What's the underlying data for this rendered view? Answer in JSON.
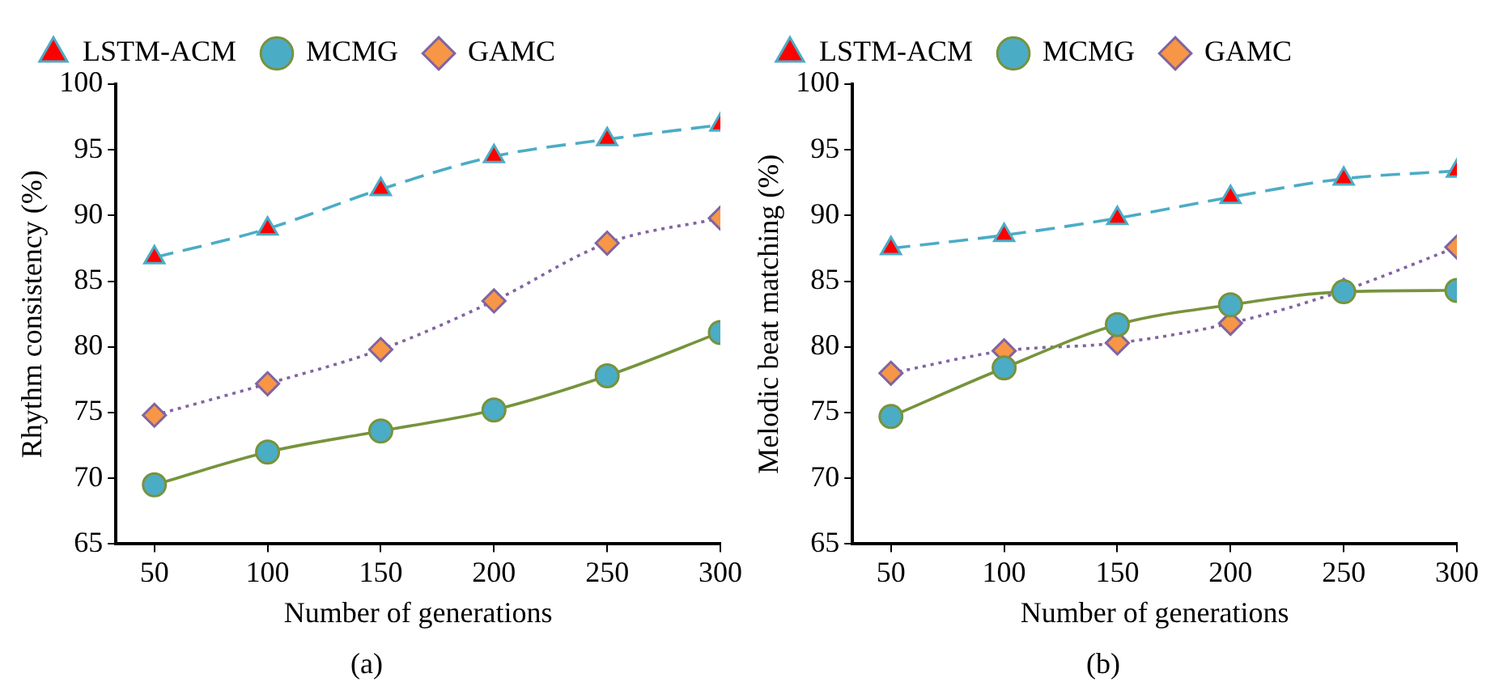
{
  "chart_data": [
    {
      "type": "line",
      "xlabel": "Number of generations",
      "ylabel": "Rhythm consistency (%)",
      "annotations": [
        "(a)"
      ],
      "x": [
        50,
        100,
        150,
        200,
        250,
        300
      ],
      "xlim": [
        33,
        300
      ],
      "xticks": [
        50,
        100,
        150,
        200,
        250,
        300
      ],
      "ylim": [
        65,
        100
      ],
      "yticks": [
        65,
        70,
        75,
        80,
        85,
        90,
        95,
        100
      ],
      "grid": false,
      "legend": "top",
      "series": [
        {
          "name": "LSTM-ACM",
          "color": "#4bacc6",
          "marker": "triangle",
          "line_style": "dashed",
          "values": [
            86.8,
            89.0,
            92.0,
            94.5,
            95.8,
            96.9
          ]
        },
        {
          "name": "MCMG",
          "color": "#77933c",
          "marker": "circle",
          "line_style": "solid",
          "values": [
            69.5,
            72.0,
            73.6,
            75.2,
            77.8,
            81.1
          ]
        },
        {
          "name": "GAMC",
          "color": "#8064a2",
          "marker": "diamond",
          "line_style": "dotted",
          "values": [
            74.8,
            77.2,
            79.8,
            83.5,
            87.9,
            89.8
          ]
        }
      ]
    },
    {
      "type": "line",
      "xlabel": "Number of generations",
      "ylabel": "Melodic beat matching (%)",
      "annotations": [
        "(b)"
      ],
      "x": [
        50,
        100,
        150,
        200,
        250,
        300
      ],
      "xlim": [
        33,
        300
      ],
      "xticks": [
        50,
        100,
        150,
        200,
        250,
        300
      ],
      "ylim": [
        65,
        100
      ],
      "yticks": [
        65,
        70,
        75,
        80,
        85,
        90,
        95,
        100
      ],
      "grid": false,
      "legend": "top",
      "series": [
        {
          "name": "LSTM-ACM",
          "color": "#4bacc6",
          "marker": "triangle",
          "line_style": "dashed",
          "values": [
            87.5,
            88.5,
            89.8,
            91.4,
            92.8,
            93.4
          ]
        },
        {
          "name": "MCMG",
          "color": "#77933c",
          "marker": "circle",
          "line_style": "solid",
          "values": [
            74.7,
            78.4,
            81.7,
            83.2,
            84.2,
            84.3
          ]
        },
        {
          "name": "GAMC",
          "color": "#8064a2",
          "marker": "diamond",
          "line_style": "dotted",
          "values": [
            78.0,
            79.7,
            80.3,
            81.8,
            84.3,
            87.6
          ]
        }
      ]
    }
  ]
}
